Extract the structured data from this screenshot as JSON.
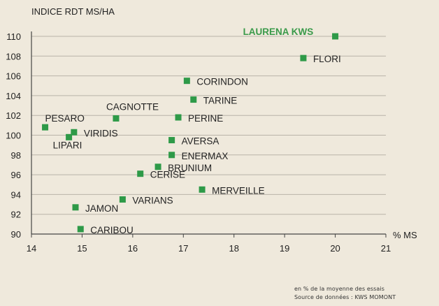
{
  "chart_data": {
    "type": "scatter",
    "ylabel": "INDICE RDT MS/HA",
    "xlabel": "% MS",
    "xlim": [
      14,
      21
    ],
    "ylim": [
      90,
      111
    ],
    "xticks": [
      14,
      15,
      16,
      17,
      18,
      19,
      20,
      21
    ],
    "yticks": [
      90,
      92,
      94,
      96,
      98,
      100,
      102,
      104,
      106,
      108,
      110
    ],
    "grid": "horizontal",
    "colors": {
      "marker": "#2e9a48",
      "highlight_label": "#3a9a4a",
      "grid": "#b9b3a8",
      "background": "#efe9dc"
    },
    "points": [
      {
        "name": "LAURENA KWS",
        "x": 20.0,
        "y": 110.0,
        "highlight": true
      },
      {
        "name": "FLORI",
        "x": 19.37,
        "y": 107.8
      },
      {
        "name": "CORINDON",
        "x": 17.07,
        "y": 105.5
      },
      {
        "name": "TARINE",
        "x": 17.2,
        "y": 103.6
      },
      {
        "name": "CAGNOTTE",
        "x": 15.67,
        "y": 101.7
      },
      {
        "name": "PERINE",
        "x": 16.9,
        "y": 101.8
      },
      {
        "name": "PESARO",
        "x": 14.27,
        "y": 100.8
      },
      {
        "name": "VIRIDIS",
        "x": 14.84,
        "y": 100.3
      },
      {
        "name": "LIPARI",
        "x": 14.74,
        "y": 99.8
      },
      {
        "name": "AVERSA",
        "x": 16.77,
        "y": 99.5
      },
      {
        "name": "ENERMAX",
        "x": 16.77,
        "y": 98.0
      },
      {
        "name": "BRUNIUM",
        "x": 16.5,
        "y": 96.8
      },
      {
        "name": "CERISE",
        "x": 16.15,
        "y": 96.1
      },
      {
        "name": "MERVEILLE",
        "x": 17.37,
        "y": 94.5
      },
      {
        "name": "VARIANS",
        "x": 15.8,
        "y": 93.5
      },
      {
        "name": "JAMON",
        "x": 14.87,
        "y": 92.7
      },
      {
        "name": "CARIBOU",
        "x": 14.97,
        "y": 90.5
      }
    ]
  },
  "footnote": {
    "line1": "en % de la moyenne des essais",
    "line2": "Source de données : KWS MOMONT"
  }
}
